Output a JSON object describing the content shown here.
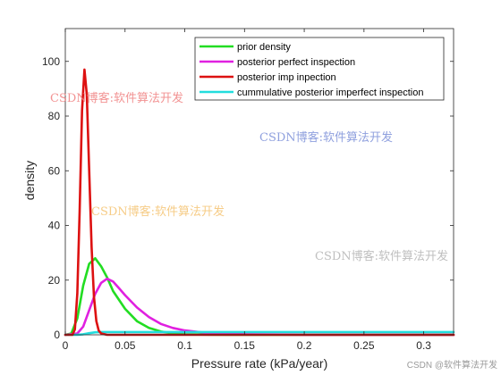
{
  "chart_data": {
    "type": "line",
    "xlabel": "Pressure rate (kPa/year)",
    "ylabel": "density",
    "xlim": [
      0,
      0.325
    ],
    "ylim": [
      0,
      112
    ],
    "xticks": [
      0,
      0.05,
      0.1,
      0.15,
      0.2,
      0.25,
      0.3
    ],
    "xtick_labels": [
      "0",
      "0.05",
      "0.1",
      "0.15",
      "0.2",
      "0.25",
      "0.3"
    ],
    "yticks": [
      0,
      20,
      40,
      60,
      80,
      100
    ],
    "ytick_labels": [
      "0",
      "20",
      "40",
      "60",
      "80",
      "100"
    ],
    "grid": false,
    "legend_position": "top-right",
    "series": [
      {
        "name": "prior density",
        "color": "#22dd22",
        "x": [
          0,
          0.005,
          0.01,
          0.015,
          0.02,
          0.025,
          0.03,
          0.035,
          0.04,
          0.05,
          0.06,
          0.07,
          0.08,
          0.09,
          0.1,
          0.12,
          0.15,
          0.2,
          0.25,
          0.3,
          0.325
        ],
        "y": [
          0,
          0.5,
          6,
          18,
          26,
          28,
          25,
          21,
          16,
          9.5,
          5,
          2.5,
          1.2,
          0.5,
          0.2,
          0.05,
          0,
          0,
          0,
          0,
          0
        ]
      },
      {
        "name": "posterior perfect inspection",
        "color": "#e020e0",
        "x": [
          0,
          0.01,
          0.015,
          0.02,
          0.025,
          0.03,
          0.035,
          0.04,
          0.045,
          0.05,
          0.06,
          0.07,
          0.08,
          0.09,
          0.1,
          0.12,
          0.15,
          0.2,
          0.25,
          0.3,
          0.325
        ],
        "y": [
          0,
          0.5,
          3,
          9,
          15,
          19,
          20.5,
          19.5,
          17,
          14.5,
          10,
          6.5,
          4,
          2.5,
          1.6,
          0.6,
          0.2,
          0,
          0,
          0,
          0
        ]
      },
      {
        "name": "posterior imp inpection",
        "color": "#dd1111",
        "x": [
          0,
          0.006,
          0.008,
          0.01,
          0.012,
          0.014,
          0.016,
          0.018,
          0.02,
          0.022,
          0.024,
          0.026,
          0.028,
          0.03,
          0.035,
          0.04,
          0.1,
          0.2,
          0.325
        ],
        "y": [
          0,
          0,
          2,
          15,
          45,
          82,
          97,
          88,
          60,
          32,
          14,
          5,
          1.5,
          0.5,
          0,
          0,
          0,
          0,
          0
        ]
      },
      {
        "name": "cummulative posterior imperfect inspection",
        "color": "#22dddd",
        "x": [
          0,
          0.01,
          0.015,
          0.02,
          0.025,
          0.03,
          0.035,
          0.05,
          0.1,
          0.2,
          0.3,
          0.325
        ],
        "y": [
          0,
          0,
          0.2,
          0.6,
          0.9,
          1,
          1,
          1,
          1,
          1,
          1,
          1
        ]
      }
    ]
  },
  "watermarks": [
    "CSDN博客:软件算法开发",
    "CSDN博客:软件算法开发",
    "CSDN博客:软件算法开发",
    "CSDN博客:软件算法开发"
  ],
  "footer": {
    "credit": "CSDN @软件算法开发"
  }
}
